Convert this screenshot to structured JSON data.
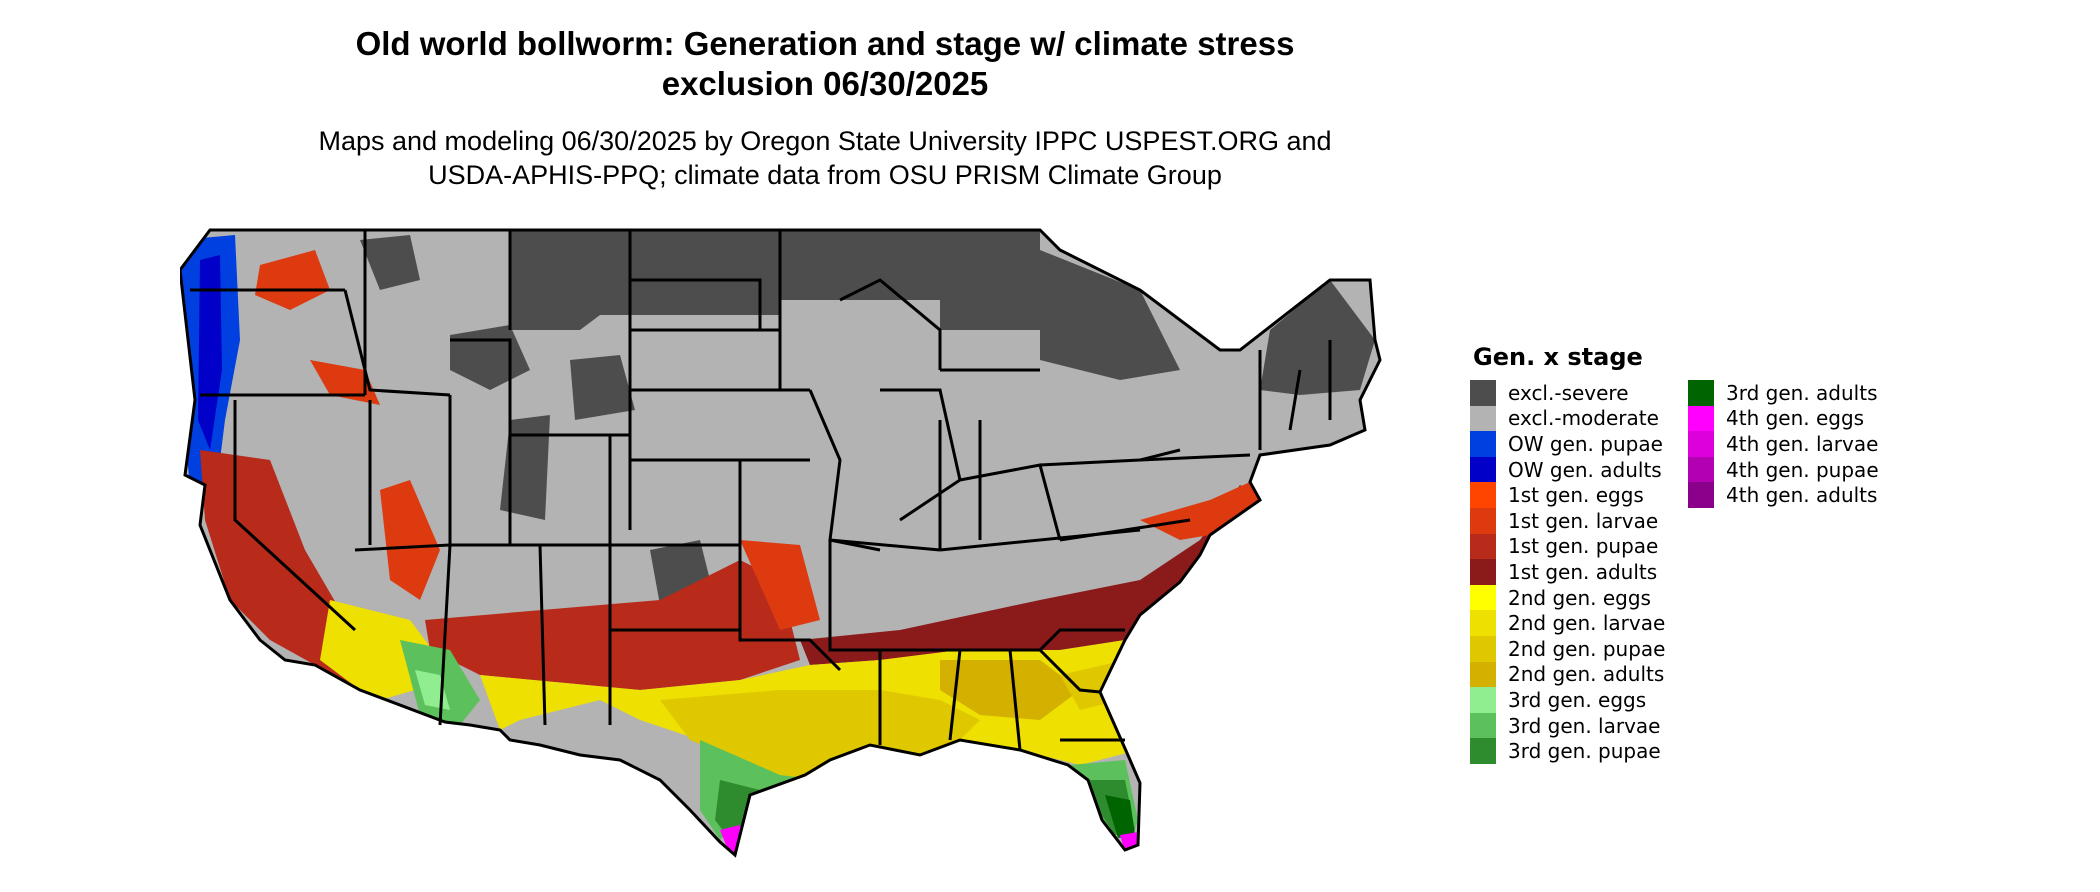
{
  "title_line1": "Old world bollworm: Generation and stage w/ climate stress",
  "title_line2": "exclusion 06/30/2025",
  "subtitle_line1": "Maps and modeling 06/30/2025 by Oregon State University IPPC USPEST.ORG and",
  "subtitle_line2": "USDA-APHIS-PPQ; climate data from OSU PRISM Climate Group",
  "legend": {
    "title": "Gen. x stage",
    "col1": [
      {
        "label": "excl.-severe",
        "color": "#4d4d4d"
      },
      {
        "label": "excl.-moderate",
        "color": "#b3b3b3"
      },
      {
        "label": "OW gen. pupae",
        "color": "#0040e0"
      },
      {
        "label": "OW gen. adults",
        "color": "#0000c8"
      },
      {
        "label": "1st gen. eggs",
        "color": "#ff4500"
      },
      {
        "label": "1st gen. larvae",
        "color": "#dd3a10"
      },
      {
        "label": "1st gen. pupae",
        "color": "#b82a1a"
      },
      {
        "label": "1st gen. adults",
        "color": "#8b1a1a"
      },
      {
        "label": "2nd gen. eggs",
        "color": "#ffff00"
      },
      {
        "label": "2nd gen. larvae",
        "color": "#eee000"
      },
      {
        "label": "2nd gen. pupae",
        "color": "#dfc800"
      },
      {
        "label": "2nd gen. adults",
        "color": "#d4b000"
      },
      {
        "label": "3rd gen. eggs",
        "color": "#90ee90"
      },
      {
        "label": "3rd gen. larvae",
        "color": "#5cc05c"
      },
      {
        "label": "3rd gen. pupae",
        "color": "#2e8b2e"
      }
    ],
    "col2": [
      {
        "label": "3rd gen. adults",
        "color": "#006400"
      },
      {
        "label": "4th gen. eggs",
        "color": "#ff00ff"
      },
      {
        "label": "4th gen. larvae",
        "color": "#dd00dd"
      },
      {
        "label": "4th gen. pupae",
        "color": "#b300b3"
      },
      {
        "label": "4th gen. adults",
        "color": "#8b008b"
      }
    ]
  }
}
